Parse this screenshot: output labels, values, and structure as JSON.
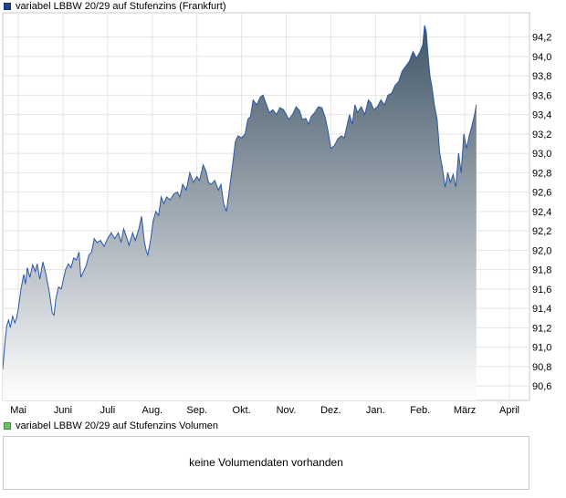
{
  "price_legend": {
    "label": "variabel LBBW 20/29 auf Stufenzins (Frankfurt)",
    "color": "#1f3f8f"
  },
  "volume_legend": {
    "label": "variabel LBBW 20/29 auf Stufenzins Volumen",
    "color": "#6dc26d"
  },
  "volume_panel": {
    "message": "keine Volumendaten vorhanden"
  },
  "chart_data": {
    "type": "area",
    "title": "variabel LBBW 20/29 auf Stufenzins (Frankfurt)",
    "xlabel": "",
    "ylabel": "",
    "ylim": [
      90.45,
      94.45
    ],
    "y_ticks": [
      "94,2",
      "94,0",
      "93,8",
      "93,6",
      "93,4",
      "93,2",
      "93,0",
      "92,8",
      "92,6",
      "92,4",
      "92,2",
      "92,0",
      "91,8",
      "91,6",
      "91,4",
      "91,2",
      "91,0",
      "90,8",
      "90,6"
    ],
    "x_ticks": [
      "Mai",
      "Juni",
      "Juli",
      "Aug.",
      "Sep.",
      "Okt.",
      "Nov.",
      "Dez.",
      "Jan.",
      "Feb.",
      "März",
      "April"
    ],
    "x_range_months": [
      -0.35,
      11.45
    ],
    "grid": true,
    "line_color": "#2b56a8",
    "fill_top_color": "#3f5566",
    "fill_bottom_color": "#ffffff",
    "series": [
      {
        "name": "variabel LBBW 20/29 auf Stufenzins (Frankfurt)",
        "points": [
          [
            -0.35,
            90.77
          ],
          [
            -0.3,
            91.05
          ],
          [
            -0.26,
            91.22
          ],
          [
            -0.22,
            91.28
          ],
          [
            -0.18,
            91.2
          ],
          [
            -0.13,
            91.32
          ],
          [
            -0.08,
            91.25
          ],
          [
            -0.04,
            91.3
          ],
          [
            0.0,
            91.4
          ],
          [
            0.06,
            91.6
          ],
          [
            0.12,
            91.75
          ],
          [
            0.16,
            91.65
          ],
          [
            0.2,
            91.82
          ],
          [
            0.26,
            91.72
          ],
          [
            0.32,
            91.85
          ],
          [
            0.38,
            91.78
          ],
          [
            0.42,
            91.86
          ],
          [
            0.48,
            91.7
          ],
          [
            0.55,
            91.88
          ],
          [
            0.62,
            91.75
          ],
          [
            0.7,
            91.55
          ],
          [
            0.76,
            91.35
          ],
          [
            0.8,
            91.33
          ],
          [
            0.84,
            91.5
          ],
          [
            0.9,
            91.62
          ],
          [
            0.96,
            91.6
          ],
          [
            1.0,
            91.68
          ],
          [
            1.06,
            91.8
          ],
          [
            1.12,
            91.86
          ],
          [
            1.18,
            91.82
          ],
          [
            1.24,
            91.92
          ],
          [
            1.3,
            91.9
          ],
          [
            1.36,
            91.98
          ],
          [
            1.4,
            91.72
          ],
          [
            1.46,
            91.78
          ],
          [
            1.52,
            91.84
          ],
          [
            1.58,
            91.95
          ],
          [
            1.64,
            91.98
          ],
          [
            1.7,
            92.12
          ],
          [
            1.76,
            92.08
          ],
          [
            1.84,
            92.1
          ],
          [
            1.92,
            92.04
          ],
          [
            2.0,
            92.12
          ],
          [
            2.08,
            92.18
          ],
          [
            2.16,
            92.12
          ],
          [
            2.24,
            92.18
          ],
          [
            2.3,
            92.08
          ],
          [
            2.36,
            92.22
          ],
          [
            2.42,
            92.14
          ],
          [
            2.48,
            92.05
          ],
          [
            2.56,
            92.18
          ],
          [
            2.62,
            92.1
          ],
          [
            2.7,
            92.22
          ],
          [
            2.76,
            92.35
          ],
          [
            2.82,
            92.1
          ],
          [
            2.86,
            92.0
          ],
          [
            2.9,
            91.95
          ],
          [
            2.96,
            92.1
          ],
          [
            3.02,
            92.3
          ],
          [
            3.08,
            92.4
          ],
          [
            3.14,
            92.36
          ],
          [
            3.2,
            92.55
          ],
          [
            3.26,
            92.48
          ],
          [
            3.32,
            92.55
          ],
          [
            3.4,
            92.52
          ],
          [
            3.48,
            92.58
          ],
          [
            3.56,
            92.6
          ],
          [
            3.62,
            92.55
          ],
          [
            3.68,
            92.68
          ],
          [
            3.76,
            92.62
          ],
          [
            3.84,
            92.8
          ],
          [
            3.92,
            92.7
          ],
          [
            4.0,
            92.76
          ],
          [
            4.06,
            92.72
          ],
          [
            4.14,
            92.88
          ],
          [
            4.2,
            92.82
          ],
          [
            4.26,
            92.7
          ],
          [
            4.32,
            92.68
          ],
          [
            4.4,
            92.72
          ],
          [
            4.48,
            92.62
          ],
          [
            4.54,
            92.68
          ],
          [
            4.6,
            92.48
          ],
          [
            4.66,
            92.4
          ],
          [
            4.72,
            92.6
          ],
          [
            4.8,
            92.88
          ],
          [
            4.86,
            93.12
          ],
          [
            4.92,
            93.18
          ],
          [
            5.0,
            93.16
          ],
          [
            5.08,
            93.2
          ],
          [
            5.14,
            93.35
          ],
          [
            5.2,
            93.38
          ],
          [
            5.26,
            93.55
          ],
          [
            5.34,
            93.5
          ],
          [
            5.42,
            93.58
          ],
          [
            5.48,
            93.6
          ],
          [
            5.56,
            93.5
          ],
          [
            5.62,
            93.42
          ],
          [
            5.7,
            93.45
          ],
          [
            5.78,
            93.4
          ],
          [
            5.86,
            93.47
          ],
          [
            5.94,
            93.45
          ],
          [
            6.0,
            93.4
          ],
          [
            6.06,
            93.35
          ],
          [
            6.14,
            93.4
          ],
          [
            6.22,
            93.48
          ],
          [
            6.3,
            93.44
          ],
          [
            6.36,
            93.35
          ],
          [
            6.44,
            93.36
          ],
          [
            6.5,
            93.3
          ],
          [
            6.56,
            93.38
          ],
          [
            6.64,
            93.42
          ],
          [
            6.72,
            93.48
          ],
          [
            6.8,
            93.47
          ],
          [
            6.88,
            93.36
          ],
          [
            6.94,
            93.22
          ],
          [
            7.0,
            93.05
          ],
          [
            7.08,
            93.08
          ],
          [
            7.16,
            93.15
          ],
          [
            7.24,
            93.18
          ],
          [
            7.3,
            93.16
          ],
          [
            7.36,
            93.28
          ],
          [
            7.42,
            93.4
          ],
          [
            7.48,
            93.3
          ],
          [
            7.54,
            93.5
          ],
          [
            7.6,
            93.42
          ],
          [
            7.68,
            93.48
          ],
          [
            7.76,
            93.4
          ],
          [
            7.84,
            93.55
          ],
          [
            7.9,
            93.52
          ],
          [
            7.96,
            93.45
          ],
          [
            8.04,
            93.48
          ],
          [
            8.12,
            93.55
          ],
          [
            8.2,
            93.5
          ],
          [
            8.28,
            93.6
          ],
          [
            8.36,
            93.62
          ],
          [
            8.44,
            93.7
          ],
          [
            8.52,
            93.74
          ],
          [
            8.6,
            93.85
          ],
          [
            8.68,
            93.9
          ],
          [
            8.76,
            93.95
          ],
          [
            8.84,
            94.05
          ],
          [
            8.92,
            93.98
          ],
          [
            9.0,
            94.05
          ],
          [
            9.06,
            94.12
          ],
          [
            9.1,
            94.32
          ],
          [
            9.14,
            94.25
          ],
          [
            9.18,
            94.0
          ],
          [
            9.22,
            93.8
          ],
          [
            9.26,
            93.7
          ],
          [
            9.32,
            93.5
          ],
          [
            9.38,
            93.35
          ],
          [
            9.44,
            93.0
          ],
          [
            9.5,
            92.85
          ],
          [
            9.56,
            92.65
          ],
          [
            9.62,
            92.8
          ],
          [
            9.68,
            92.7
          ],
          [
            9.74,
            92.78
          ],
          [
            9.8,
            92.65
          ],
          [
            9.86,
            93.0
          ],
          [
            9.92,
            92.8
          ],
          [
            9.98,
            93.2
          ],
          [
            10.04,
            93.05
          ],
          [
            10.1,
            93.18
          ],
          [
            10.16,
            93.28
          ],
          [
            10.22,
            93.4
          ],
          [
            10.26,
            93.5
          ]
        ]
      }
    ]
  }
}
